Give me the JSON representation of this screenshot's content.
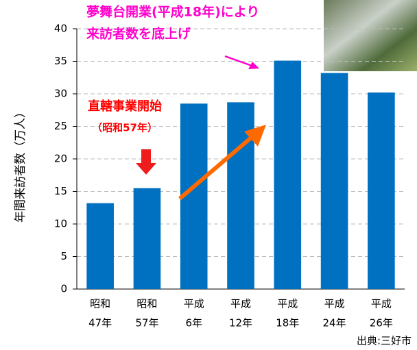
{
  "chart_data": {
    "type": "bar",
    "y_label": "年間来訪者数（万人）",
    "categories": [
      [
        "昭和",
        "47年"
      ],
      [
        "昭和",
        "57年"
      ],
      [
        "平成",
        "6年"
      ],
      [
        "平成",
        "12年"
      ],
      [
        "平成",
        "18年"
      ],
      [
        "平成",
        "24年"
      ],
      [
        "平成",
        "26年"
      ]
    ],
    "values": [
      13.2,
      15.5,
      28.5,
      28.7,
      35.1,
      33.2,
      30.2
    ],
    "color": "#0070c0",
    "ylim": [
      0,
      40
    ],
    "yticks": [
      0,
      5,
      10,
      15,
      20,
      25,
      30,
      35,
      40
    ],
    "grid": true,
    "annotations": {
      "opening": [
        "夢舞台開業(平成18年)により",
        "来訪者数を底上げ"
      ],
      "start": [
        "直轄事業開始",
        "（昭和57年）"
      ]
    },
    "source": "出典:三好市"
  }
}
